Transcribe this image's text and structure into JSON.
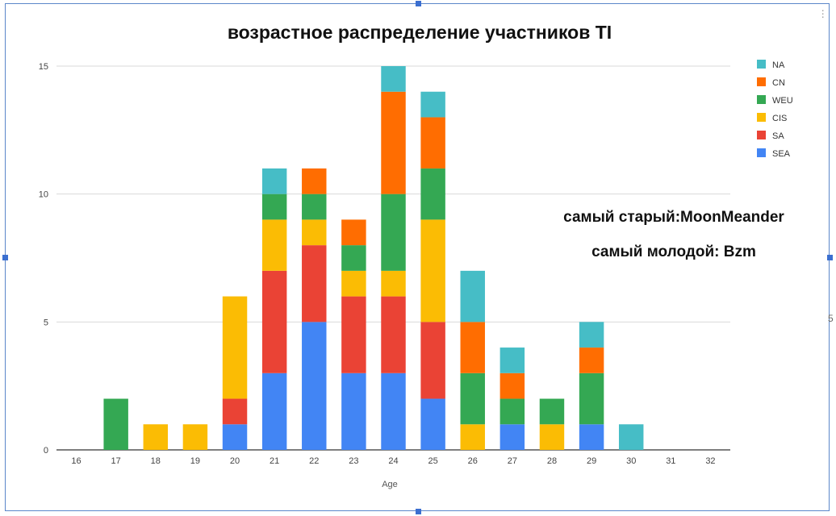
{
  "chart_data": {
    "type": "bar",
    "stacked": true,
    "title": "возрастное распределение участников TI",
    "xlabel": "Age",
    "ylabel": "",
    "ylim": [
      0,
      15
    ],
    "yticks": [
      0,
      5,
      10,
      15
    ],
    "grid": true,
    "legend_position": "right-top",
    "categories": [
      "16",
      "17",
      "18",
      "19",
      "20",
      "21",
      "22",
      "23",
      "24",
      "25",
      "26",
      "27",
      "28",
      "29",
      "30",
      "31",
      "32"
    ],
    "series": [
      {
        "name": "SEA",
        "color": "#4285f4",
        "values": [
          0,
          0,
          0,
          0,
          1,
          3,
          5,
          3,
          3,
          2,
          0,
          1,
          0,
          1,
          0,
          0,
          0
        ]
      },
      {
        "name": "SA",
        "color": "#ea4335",
        "values": [
          0,
          0,
          0,
          0,
          1,
          4,
          3,
          3,
          3,
          3,
          0,
          0,
          0,
          0,
          0,
          0,
          0
        ]
      },
      {
        "name": "CIS",
        "color": "#fbbc04",
        "values": [
          0,
          0,
          1,
          1,
          4,
          2,
          1,
          1,
          1,
          4,
          1,
          0,
          1,
          0,
          0,
          0,
          0
        ]
      },
      {
        "name": "WEU",
        "color": "#34a853",
        "values": [
          0,
          2,
          0,
          0,
          0,
          1,
          1,
          1,
          3,
          2,
          2,
          1,
          1,
          2,
          0,
          0,
          0
        ]
      },
      {
        "name": "CN",
        "color": "#ff6d01",
        "values": [
          0,
          0,
          0,
          0,
          0,
          0,
          1,
          1,
          4,
          2,
          2,
          1,
          0,
          1,
          0,
          0,
          0
        ]
      },
      {
        "name": "NA",
        "color": "#46bdc6",
        "values": [
          0,
          0,
          0,
          0,
          0,
          1,
          0,
          0,
          1,
          1,
          2,
          1,
          0,
          1,
          1,
          0,
          0
        ]
      }
    ],
    "legend_order": [
      "NA",
      "CN",
      "WEU",
      "CIS",
      "SA",
      "SEA"
    ],
    "annotations": [
      "самый старый:MoonMeander",
      "самый молодой: Bzm"
    ]
  },
  "edge_glyph": "5"
}
